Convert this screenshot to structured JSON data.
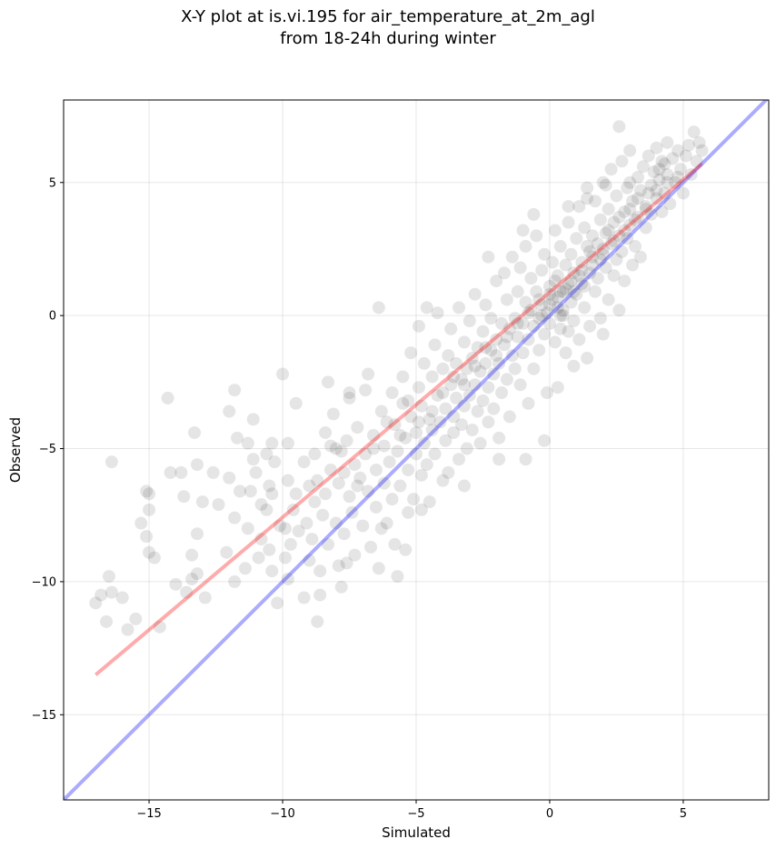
{
  "chart_data": {
    "type": "scatter",
    "title": "X-Y plot at is.vi.195 for air_temperature_at_2m_agl",
    "subtitle": "from 18-24h during winter",
    "xlabel": "Simulated",
    "ylabel": "Observed",
    "xlim": [
      -18.2,
      8.2
    ],
    "ylim": [
      -18.2,
      8.1
    ],
    "xticks": [
      -15,
      -10,
      -5,
      0,
      5
    ],
    "yticks": [
      5,
      0,
      -5,
      -10,
      -15
    ],
    "xtick_labels": [
      "−15",
      "−10",
      "−5",
      "0",
      "5"
    ],
    "ytick_labels": [
      "5",
      "0",
      "−5",
      "−10",
      "−15"
    ],
    "grid": true,
    "reference_line": {
      "color": "#0000ff",
      "x": [
        -18.2,
        8.2
      ],
      "y": [
        -18.2,
        8.2
      ]
    },
    "regression_line": {
      "color": "#ff0000",
      "x": [
        -17.0,
        5.7
      ],
      "y": [
        -13.5,
        5.7
      ]
    },
    "marker_color": "#000000",
    "points": [
      [
        -17.0,
        -10.8
      ],
      [
        -16.8,
        -10.5
      ],
      [
        -16.6,
        -11.5
      ],
      [
        -16.5,
        -9.8
      ],
      [
        -16.4,
        -10.4
      ],
      [
        -16.4,
        -5.5
      ],
      [
        -15.8,
        -11.8
      ],
      [
        -15.5,
        -11.4
      ],
      [
        -15.3,
        -7.8
      ],
      [
        -15.1,
        -8.3
      ],
      [
        -15.1,
        -6.6
      ],
      [
        -15.0,
        -6.7
      ],
      [
        -15.0,
        -8.9
      ],
      [
        -15.0,
        -7.3
      ],
      [
        -14.8,
        -9.1
      ],
      [
        -14.6,
        -11.7
      ],
      [
        -14.3,
        -3.1
      ],
      [
        -14.2,
        -5.9
      ],
      [
        -13.8,
        -5.9
      ],
      [
        -13.7,
        -6.8
      ],
      [
        -13.6,
        -10.4
      ],
      [
        -13.4,
        -9.9
      ],
      [
        -13.4,
        -9.0
      ],
      [
        -13.3,
        -4.4
      ],
      [
        -13.2,
        -8.2
      ],
      [
        -13.2,
        -9.7
      ],
      [
        -13.2,
        -5.6
      ],
      [
        -12.9,
        -10.6
      ],
      [
        -12.6,
        -5.9
      ],
      [
        -12.4,
        -7.1
      ],
      [
        -12.1,
        -8.9
      ],
      [
        -11.8,
        -10.0
      ],
      [
        -11.8,
        -7.6
      ],
      [
        -11.8,
        -2.8
      ],
      [
        -11.7,
        -4.6
      ],
      [
        -11.6,
        -6.6
      ],
      [
        -11.4,
        -9.5
      ],
      [
        -11.3,
        -8.0
      ],
      [
        -11.3,
        -4.8
      ],
      [
        -11.2,
        -6.6
      ],
      [
        -11.1,
        -5.4
      ],
      [
        -11.0,
        -5.9
      ],
      [
        -10.9,
        -9.1
      ],
      [
        -10.8,
        -7.1
      ],
      [
        -10.8,
        -8.4
      ],
      [
        -10.6,
        -5.2
      ],
      [
        -10.6,
        -7.3
      ],
      [
        -10.5,
        -6.4
      ],
      [
        -10.5,
        -8.8
      ],
      [
        -10.4,
        -4.8
      ],
      [
        -10.4,
        -9.6
      ],
      [
        -10.4,
        -6.7
      ],
      [
        -10.2,
        -10.8
      ],
      [
        -10.1,
        -7.9
      ],
      [
        -9.9,
        -9.1
      ],
      [
        -9.9,
        -8.0
      ],
      [
        -9.8,
        -6.2
      ],
      [
        -9.8,
        -9.9
      ],
      [
        -9.8,
        -4.8
      ],
      [
        -9.7,
        -8.6
      ],
      [
        -9.6,
        -7.3
      ],
      [
        -9.5,
        -6.7
      ],
      [
        -9.4,
        -8.1
      ],
      [
        -9.2,
        -5.5
      ],
      [
        -9.2,
        -10.6
      ],
      [
        -9.1,
        -7.8
      ],
      [
        -9.0,
        -6.4
      ],
      [
        -9.0,
        -9.2
      ],
      [
        -8.9,
        -8.4
      ],
      [
        -8.8,
        -7.0
      ],
      [
        -8.8,
        -5.2
      ],
      [
        -8.7,
        -6.2
      ],
      [
        -8.7,
        -11.5
      ],
      [
        -8.6,
        -10.5
      ],
      [
        -8.6,
        -9.6
      ],
      [
        -8.5,
        -7.5
      ],
      [
        -8.4,
        -6.7
      ],
      [
        -8.3,
        -8.6
      ],
      [
        -8.2,
        -5.8
      ],
      [
        -8.2,
        -4.9
      ],
      [
        -8.1,
        -3.7
      ],
      [
        -8.0,
        -7.8
      ],
      [
        -7.9,
        -9.4
      ],
      [
        -7.9,
        -6.3
      ],
      [
        -7.8,
        -10.2
      ],
      [
        -7.8,
        -5.1
      ],
      [
        -7.7,
        -8.2
      ],
      [
        -7.6,
        -4.7
      ],
      [
        -7.5,
        -6.8
      ],
      [
        -7.5,
        -3.1
      ],
      [
        -7.4,
        -7.4
      ],
      [
        -7.3,
        -5.6
      ],
      [
        -7.3,
        -9.0
      ],
      [
        -7.2,
        -4.2
      ],
      [
        -7.1,
        -6.1
      ],
      [
        -7.0,
        -7.9
      ],
      [
        -6.9,
        -5.2
      ],
      [
        -6.9,
        -2.8
      ],
      [
        -6.8,
        -6.6
      ],
      [
        -6.7,
        -8.7
      ],
      [
        -6.6,
        -4.5
      ],
      [
        -6.5,
        -7.2
      ],
      [
        -6.5,
        -5.8
      ],
      [
        -6.4,
        -9.5
      ],
      [
        -6.3,
        -3.6
      ],
      [
        -6.2,
        -6.3
      ],
      [
        -6.2,
        -4.9
      ],
      [
        -6.1,
        -7.8
      ],
      [
        -6.0,
        -5.5
      ],
      [
        -5.9,
        -2.9
      ],
      [
        -5.9,
        -6.9
      ],
      [
        -5.8,
        -4.1
      ],
      [
        -5.8,
        -8.6
      ],
      [
        -5.7,
        -5.1
      ],
      [
        -5.6,
        -6.4
      ],
      [
        -5.5,
        -3.3
      ],
      [
        -5.5,
        -2.3
      ],
      [
        -5.4,
        -4.6
      ],
      [
        -5.3,
        -7.4
      ],
      [
        -5.3,
        -5.8
      ],
      [
        -5.2,
        -3.8
      ],
      [
        -5.2,
        -1.4
      ],
      [
        -5.1,
        -6.9
      ],
      [
        -5.0,
        -4.4
      ],
      [
        -5.0,
        -5.2
      ],
      [
        -4.9,
        -2.7
      ],
      [
        -4.9,
        -0.4
      ],
      [
        -4.8,
        -6.0
      ],
      [
        -4.8,
        -3.4
      ],
      [
        -4.7,
        -4.8
      ],
      [
        -4.7,
        -1.8
      ],
      [
        -4.6,
        -5.6
      ],
      [
        -4.5,
        -3.9
      ],
      [
        -4.5,
        -7.0
      ],
      [
        -4.4,
        -2.3
      ],
      [
        -4.4,
        -4.3
      ],
      [
        -4.3,
        -1.1
      ],
      [
        -4.3,
        -5.2
      ],
      [
        -4.2,
        -3.0
      ],
      [
        -4.2,
        0.1
      ],
      [
        -4.1,
        -4.0
      ],
      [
        -4.0,
        -6.2
      ],
      [
        -4.0,
        -2.0
      ],
      [
        -3.9,
        -3.5
      ],
      [
        -3.9,
        -4.7
      ],
      [
        -3.8,
        -1.5
      ],
      [
        -3.8,
        -5.9
      ],
      [
        -3.7,
        -2.6
      ],
      [
        -3.7,
        -0.5
      ],
      [
        -3.6,
        -3.8
      ],
      [
        -3.6,
        -4.4
      ],
      [
        -3.5,
        -1.8
      ],
      [
        -3.5,
        -3.1
      ],
      [
        -3.4,
        -5.4
      ],
      [
        -3.4,
        0.3
      ],
      [
        -3.3,
        -2.4
      ],
      [
        -3.3,
        -4.1
      ],
      [
        -3.2,
        -1.0
      ],
      [
        -3.2,
        -3.4
      ],
      [
        -3.1,
        -2.0
      ],
      [
        -3.1,
        -5.0
      ],
      [
        -3.0,
        -0.2
      ],
      [
        -3.0,
        -3.0
      ],
      [
        -2.9,
        -1.6
      ],
      [
        -2.9,
        -4.3
      ],
      [
        -2.8,
        -2.6
      ],
      [
        -2.8,
        0.8
      ],
      [
        -2.7,
        -3.6
      ],
      [
        -2.7,
        -1.2
      ],
      [
        -2.6,
        -2.1
      ],
      [
        -2.6,
        -4.8
      ],
      [
        -2.5,
        -0.6
      ],
      [
        -2.5,
        -3.2
      ],
      [
        -2.4,
        -1.8
      ],
      [
        -2.4,
        0.4
      ],
      [
        -2.3,
        -2.7
      ],
      [
        -2.3,
        -4.0
      ],
      [
        -2.2,
        -1.3
      ],
      [
        -2.2,
        -0.1
      ],
      [
        -2.1,
        -2.2
      ],
      [
        -2.1,
        -3.5
      ],
      [
        -2.0,
        -0.9
      ],
      [
        -2.0,
        1.3
      ],
      [
        -1.9,
        -1.8
      ],
      [
        -1.9,
        -4.6
      ],
      [
        -1.8,
        -0.3
      ],
      [
        -1.8,
        -2.9
      ],
      [
        -1.7,
        1.6
      ],
      [
        -1.7,
        -1.1
      ],
      [
        -1.6,
        -2.4
      ],
      [
        -1.6,
        0.6
      ],
      [
        -1.5,
        -0.5
      ],
      [
        -1.5,
        -3.8
      ],
      [
        -1.4,
        -1.5
      ],
      [
        -1.4,
        2.2
      ],
      [
        -1.3,
        -0.1
      ],
      [
        -1.3,
        -2.0
      ],
      [
        -1.2,
        0.9
      ],
      [
        -1.2,
        -0.8
      ],
      [
        -1.1,
        -2.6
      ],
      [
        -1.1,
        1.8
      ],
      [
        -1.0,
        -0.3
      ],
      [
        -1.0,
        -1.4
      ],
      [
        -0.9,
        0.5
      ],
      [
        -0.9,
        2.6
      ],
      [
        -0.8,
        -0.9
      ],
      [
        -0.8,
        -3.3
      ],
      [
        -0.7,
        0.2
      ],
      [
        -0.7,
        1.4
      ],
      [
        -0.6,
        -0.4
      ],
      [
        -0.6,
        -2.0
      ],
      [
        -0.5,
        0.9
      ],
      [
        -0.5,
        3.0
      ],
      [
        -0.4,
        -0.1
      ],
      [
        -0.4,
        -1.3
      ],
      [
        -0.3,
        1.7
      ],
      [
        -0.3,
        0.4
      ],
      [
        -0.2,
        -0.7
      ],
      [
        -0.2,
        2.3
      ],
      [
        -0.1,
        0.1
      ],
      [
        -0.1,
        -2.9
      ],
      [
        0.0,
        1.1
      ],
      [
        0.0,
        -0.3
      ],
      [
        0.1,
        2.0
      ],
      [
        0.1,
        0.6
      ],
      [
        0.2,
        -1.0
      ],
      [
        0.2,
        3.2
      ],
      [
        0.3,
        0.3
      ],
      [
        0.3,
        1.5
      ],
      [
        0.4,
        -0.5
      ],
      [
        0.4,
        2.6
      ],
      [
        0.5,
        0.9
      ],
      [
        0.5,
        0.0
      ],
      [
        0.6,
        1.9
      ],
      [
        0.6,
        -1.4
      ],
      [
        0.7,
        1.2
      ],
      [
        0.7,
        3.5
      ],
      [
        0.8,
        0.5
      ],
      [
        0.8,
        2.3
      ],
      [
        0.9,
        -0.2
      ],
      [
        0.9,
        1.6
      ],
      [
        1.0,
        2.9
      ],
      [
        1.0,
        0.8
      ],
      [
        1.1,
        4.1
      ],
      [
        1.1,
        -0.9
      ],
      [
        1.2,
        2.0
      ],
      [
        1.2,
        1.2
      ],
      [
        1.3,
        3.3
      ],
      [
        1.3,
        0.3
      ],
      [
        1.4,
        2.6
      ],
      [
        1.4,
        4.8
      ],
      [
        1.5,
        1.6
      ],
      [
        1.5,
        -0.4
      ],
      [
        1.6,
        3.0
      ],
      [
        1.6,
        2.2
      ],
      [
        1.7,
        0.9
      ],
      [
        1.7,
        4.3
      ],
      [
        1.8,
        2.7
      ],
      [
        1.8,
        1.4
      ],
      [
        1.9,
        3.6
      ],
      [
        1.9,
        -0.1
      ],
      [
        2.0,
        2.3
      ],
      [
        2.0,
        5.0
      ],
      [
        2.1,
        1.8
      ],
      [
        2.1,
        3.1
      ],
      [
        2.2,
        0.6
      ],
      [
        2.2,
        4.0
      ],
      [
        2.3,
        2.7
      ],
      [
        2.3,
        5.5
      ],
      [
        2.4,
        1.5
      ],
      [
        2.4,
        3.5
      ],
      [
        2.5,
        2.1
      ],
      [
        2.5,
        4.5
      ],
      [
        2.6,
        0.2
      ],
      [
        2.6,
        3.0
      ],
      [
        2.7,
        5.8
      ],
      [
        2.7,
        2.4
      ],
      [
        2.8,
        3.9
      ],
      [
        2.8,
        1.3
      ],
      [
        2.9,
        4.8
      ],
      [
        2.9,
        2.9
      ],
      [
        3.0,
        6.2
      ],
      [
        3.0,
        3.4
      ],
      [
        3.1,
        1.9
      ],
      [
        3.1,
        4.3
      ],
      [
        3.2,
        2.6
      ],
      [
        3.3,
        5.2
      ],
      [
        3.3,
        3.7
      ],
      [
        3.4,
        4.7
      ],
      [
        3.4,
        2.2
      ],
      [
        3.5,
        5.6
      ],
      [
        3.6,
        3.3
      ],
      [
        3.6,
        4.1
      ],
      [
        3.7,
        6.0
      ],
      [
        3.8,
        4.9
      ],
      [
        3.8,
        3.8
      ],
      [
        3.9,
        5.4
      ],
      [
        4.0,
        4.4
      ],
      [
        4.0,
        6.3
      ],
      [
        4.1,
        5.1
      ],
      [
        4.2,
        3.9
      ],
      [
        4.2,
        5.8
      ],
      [
        4.3,
        4.6
      ],
      [
        4.4,
        6.5
      ],
      [
        4.4,
        5.3
      ],
      [
        4.5,
        4.2
      ],
      [
        4.6,
        5.9
      ],
      [
        4.7,
        5.0
      ],
      [
        4.8,
        6.2
      ],
      [
        4.9,
        5.5
      ],
      [
        5.0,
        4.6
      ],
      [
        5.1,
        6.0
      ],
      [
        5.2,
        6.4
      ],
      [
        5.3,
        5.3
      ],
      [
        5.4,
        6.9
      ],
      [
        5.5,
        5.8
      ],
      [
        5.6,
        6.5
      ],
      [
        5.7,
        6.2
      ],
      [
        2.6,
        7.1
      ],
      [
        -12.0,
        -3.6
      ],
      [
        -11.1,
        -3.9
      ],
      [
        -8.3,
        -2.5
      ],
      [
        -10.0,
        -2.2
      ],
      [
        -6.3,
        -8.0
      ],
      [
        -7.6,
        -9.3
      ],
      [
        -5.7,
        -9.8
      ],
      [
        -5.4,
        -8.8
      ],
      [
        -4.8,
        -7.3
      ],
      [
        -3.2,
        -6.4
      ],
      [
        -1.9,
        -5.4
      ],
      [
        -0.9,
        -5.4
      ],
      [
        -0.2,
        -4.7
      ],
      [
        0.3,
        -2.7
      ],
      [
        0.9,
        -1.9
      ],
      [
        1.4,
        -1.6
      ],
      [
        2.0,
        -0.7
      ],
      [
        -16.0,
        -10.6
      ],
      [
        -14.0,
        -10.1
      ],
      [
        -13.0,
        -7.0
      ],
      [
        -12.0,
        -6.1
      ],
      [
        -10.3,
        -5.5
      ],
      [
        -9.5,
        -3.3
      ],
      [
        -7.5,
        -2.9
      ],
      [
        -6.8,
        -2.2
      ],
      [
        -6.4,
        0.3
      ],
      [
        -4.6,
        0.3
      ],
      [
        -2.3,
        2.2
      ],
      [
        -1.0,
        3.2
      ],
      [
        -0.6,
        3.8
      ],
      [
        0.7,
        4.1
      ],
      [
        1.4,
        4.4
      ],
      [
        2.1,
        4.9
      ],
      [
        3.0,
        5.0
      ],
      [
        -8.4,
        -4.4
      ],
      [
        -8.0,
        -5.0
      ],
      [
        -7.7,
        -5.9
      ],
      [
        -7.2,
        -6.4
      ],
      [
        -6.6,
        -5.0
      ],
      [
        -6.1,
        -4.0
      ],
      [
        -5.6,
        -4.5
      ],
      [
        -5.3,
        -3.2
      ],
      [
        -4.9,
        -4.0
      ],
      [
        -4.4,
        -3.6
      ],
      [
        -4.0,
        -2.9
      ],
      [
        -3.6,
        -2.3
      ],
      [
        -3.2,
        -2.6
      ],
      [
        -2.8,
        -1.9
      ],
      [
        -2.4,
        -1.2
      ],
      [
        -2.0,
        -1.5
      ],
      [
        -1.6,
        -0.8
      ],
      [
        -1.2,
        -0.3
      ],
      [
        -0.8,
        0.1
      ],
      [
        -0.4,
        0.6
      ],
      [
        0.0,
        0.4
      ],
      [
        0.4,
        0.9
      ],
      [
        0.8,
        1.3
      ],
      [
        1.2,
        1.7
      ],
      [
        1.6,
        1.9
      ],
      [
        2.0,
        2.5
      ],
      [
        2.4,
        2.8
      ],
      [
        2.8,
        3.2
      ],
      [
        3.2,
        3.6
      ],
      [
        3.6,
        4.0
      ],
      [
        4.0,
        4.7
      ],
      [
        4.4,
        5.0
      ],
      [
        4.8,
        5.2
      ],
      [
        0.3,
        0.7
      ],
      [
        0.6,
        1.0
      ],
      [
        0.2,
        1.3
      ],
      [
        0.5,
        0.2
      ],
      [
        0.9,
        0.9
      ],
      [
        1.1,
        1.5
      ],
      [
        0.4,
        0.0
      ],
      [
        0.7,
        -0.6
      ],
      [
        0.0,
        0.8
      ],
      [
        -0.3,
        0.0
      ],
      [
        1.3,
        1.1
      ],
      [
        1.5,
        2.4
      ],
      [
        1.9,
        2.1
      ],
      [
        2.2,
        3.2
      ],
      [
        2.6,
        3.7
      ],
      [
        3.0,
        4.0
      ],
      [
        3.3,
        4.4
      ],
      [
        3.7,
        4.6
      ],
      [
        4.1,
        5.5
      ],
      [
        4.3,
        5.7
      ]
    ]
  }
}
